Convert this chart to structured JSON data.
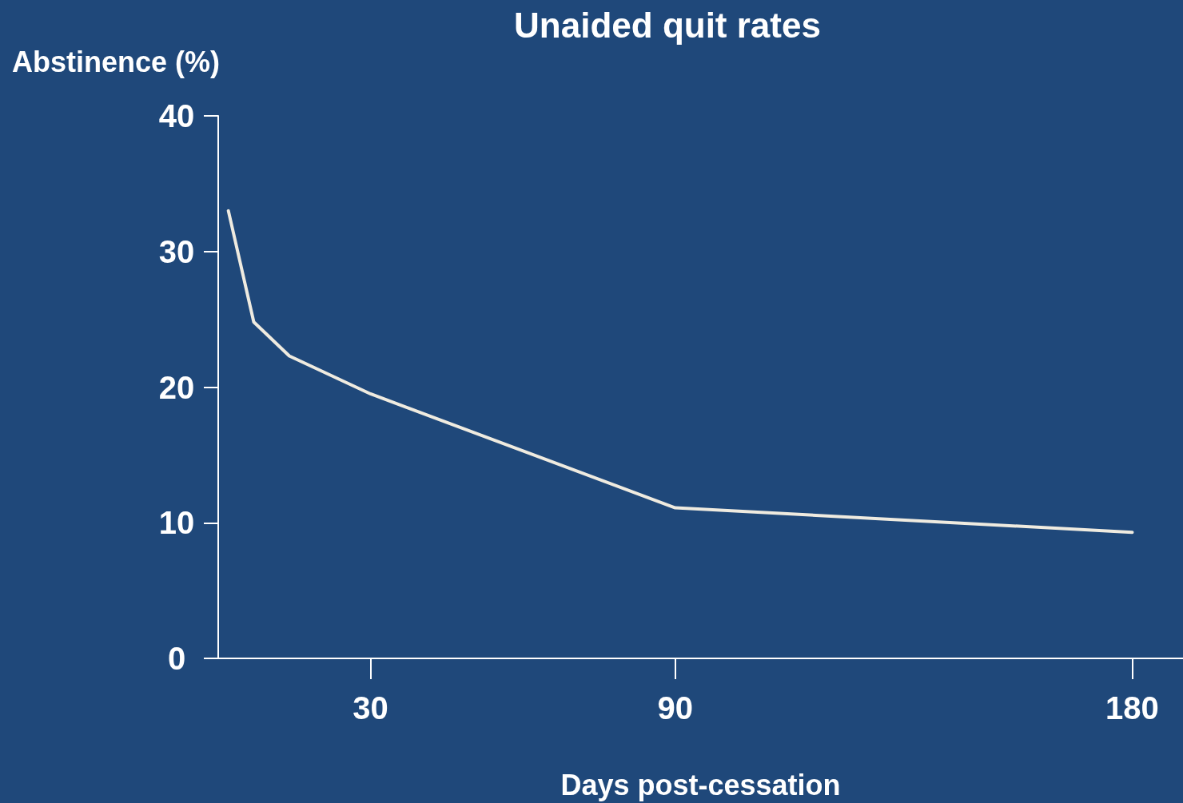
{
  "chart_data": {
    "type": "line",
    "title": "Unaided quit rates",
    "xlabel": "Days post-cessation",
    "ylabel": "Abstinence (%)",
    "x": [
      2,
      7,
      14,
      30,
      90,
      180
    ],
    "series": [
      {
        "color": "#efebe0",
        "values": [
          33,
          24.8,
          22.3,
          19.5,
          11.1,
          9.3
        ]
      }
    ],
    "xlim": [
      0,
      190
    ],
    "xticks": [
      30,
      90,
      180
    ],
    "ylim": [
      0,
      40
    ],
    "yticks": [
      0,
      10,
      20,
      30,
      40
    ],
    "grid": false,
    "marker": "none",
    "line_style": "solid"
  }
}
